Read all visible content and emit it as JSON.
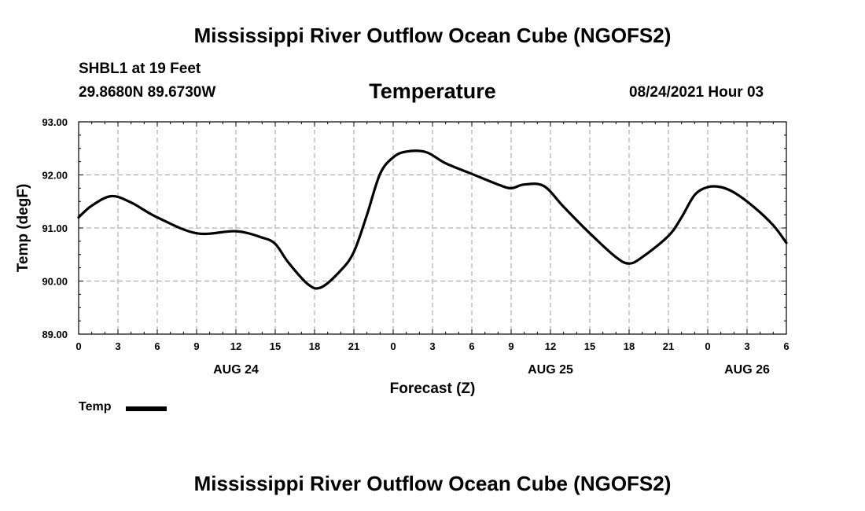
{
  "header": {
    "main_title": "Mississippi River Outflow Ocean Cube (NGOFS2)",
    "station": "SHBL1 at 19 Feet",
    "coords": "29.8680N  89.6730W",
    "date": "08/24/2021 Hour 03"
  },
  "footer": {
    "title": "Mississippi River Outflow Ocean Cube (NGOFS2)"
  },
  "colors": {
    "line": "#000000",
    "grid": "#a0a0a0",
    "background": "#ffffff"
  },
  "chart_data": {
    "type": "line",
    "title": "Temperature",
    "xlabel": "Forecast (Z)",
    "ylabel": "Temp (degF)",
    "xlim": [
      0,
      54
    ],
    "ylim": [
      89,
      93
    ],
    "grid": true,
    "y_ticks": [
      "89.00",
      "90.00",
      "91.00",
      "92.00",
      "93.00"
    ],
    "y_tick_values": [
      89,
      90,
      91,
      92,
      93
    ],
    "x_ticks": [
      "0",
      "3",
      "6",
      "9",
      "12",
      "15",
      "18",
      "21",
      "0",
      "3",
      "6",
      "9",
      "12",
      "15",
      "18",
      "21",
      "0",
      "3",
      "6"
    ],
    "x_tick_values": [
      0,
      3,
      6,
      9,
      12,
      15,
      18,
      21,
      24,
      27,
      30,
      33,
      36,
      39,
      42,
      45,
      48,
      51,
      54
    ],
    "day_labels": [
      {
        "label": "AUG 24",
        "x": 12
      },
      {
        "label": "AUG 25",
        "x": 36
      },
      {
        "label": "AUG 26",
        "x": 51
      }
    ],
    "legend": {
      "position": "bottom-left",
      "entries": [
        "Temp"
      ]
    },
    "series": [
      {
        "name": "Temp",
        "x": [
          0,
          1,
          2.5,
          4,
          6,
          9,
          12,
          14,
          15,
          16,
          17.5,
          18.5,
          20,
          21,
          22,
          23,
          24,
          25,
          26.5,
          28,
          30,
          32,
          33,
          34,
          35.5,
          37,
          39,
          41,
          42,
          43,
          45,
          46,
          47,
          48,
          49,
          50,
          51.5,
          53,
          54
        ],
        "y": [
          91.2,
          91.42,
          91.6,
          91.48,
          91.2,
          90.9,
          90.94,
          90.82,
          90.7,
          90.35,
          89.94,
          89.88,
          90.2,
          90.55,
          91.25,
          92.02,
          92.33,
          92.44,
          92.43,
          92.22,
          92.02,
          91.82,
          91.75,
          91.82,
          91.79,
          91.4,
          90.9,
          90.45,
          90.33,
          90.45,
          90.85,
          91.2,
          91.62,
          91.77,
          91.77,
          91.67,
          91.4,
          91.05,
          90.72
        ]
      }
    ]
  }
}
